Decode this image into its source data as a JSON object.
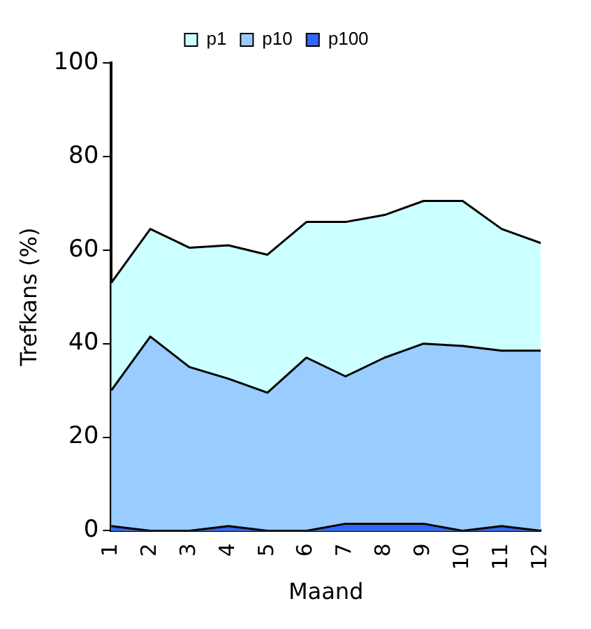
{
  "chart_data": {
    "type": "area",
    "xlabel": "Maand",
    "ylabel": "Trefkans (%)",
    "categories": [
      "1",
      "2",
      "3",
      "4",
      "5",
      "6",
      "7",
      "8",
      "9",
      "10",
      "11",
      "12"
    ],
    "series": [
      {
        "name": "p1",
        "color": "#ccffff",
        "values": [
          53,
          64.5,
          60.5,
          61,
          59,
          66,
          66,
          67.5,
          70.5,
          70.5,
          64.5,
          61.5
        ]
      },
      {
        "name": "p10",
        "color": "#99ccff",
        "values": [
          30,
          41.5,
          35,
          32.5,
          29.5,
          37,
          33,
          37,
          40,
          39.5,
          38.5,
          38.5
        ]
      },
      {
        "name": "p100",
        "color": "#3366ff",
        "values": [
          1,
          0,
          0,
          1,
          0,
          0,
          1.5,
          1.5,
          1.5,
          0,
          1,
          0
        ]
      }
    ],
    "ylim": [
      0,
      100
    ],
    "yticks": [
      0,
      20,
      40,
      60,
      80,
      100
    ],
    "grid": false,
    "legend": "top"
  }
}
